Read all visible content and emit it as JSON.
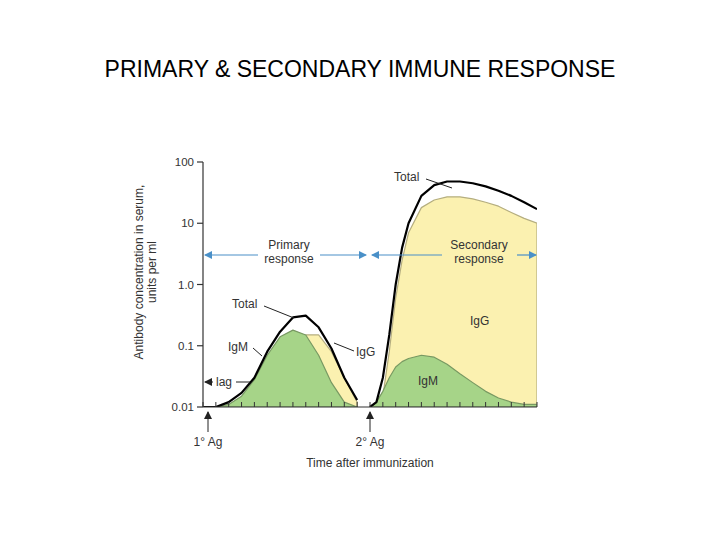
{
  "chart_data": {
    "type": "area",
    "title": "PRIMARY & SECONDARY IMMUNE RESPONSE",
    "x_label": "Time after immunization",
    "y_label": "Antibody concentration in serum, units per ml",
    "annotations": [
      "Primary response",
      "Secondary response",
      "lag",
      "1° Ag",
      "2° Ag"
    ],
    "x": [
      0,
      1,
      2,
      3,
      4,
      5,
      6,
      7,
      8,
      9,
      10,
      11,
      12,
      12.5,
      13,
      13.5,
      14,
      14.5,
      15,
      15.5,
      16,
      17,
      18,
      19,
      20,
      21,
      22,
      23,
      24,
      25,
      26
    ],
    "xlim": [
      0,
      26
    ],
    "xticks": [
      0,
      1,
      2,
      3,
      4,
      5,
      6,
      7,
      8,
      9,
      10,
      11,
      12,
      13,
      14,
      15,
      16,
      17,
      18,
      19,
      20,
      21,
      22,
      23,
      24,
      25,
      26
    ],
    "ylim": [
      0.01,
      100
    ],
    "yticks": [
      0.01,
      0.1,
      {
        "value": 1,
        "label": "1.0"
      },
      10,
      100
    ],
    "log": "y",
    "grid": false,
    "tick_labels": "y",
    "series": [
      {
        "name": "IgG",
        "color": "#fbf1b0",
        "type": "area",
        "values": [
          0.01,
          0.01,
          0.01,
          0.01,
          0.01,
          0.015,
          0.04,
          0.1,
          0.15,
          0.15,
          0.08,
          0.03,
          0.012,
          null,
          0.01,
          0.01,
          0.015,
          0.08,
          0.6,
          2.5,
          7,
          18,
          24,
          27,
          27,
          25,
          22,
          19,
          15,
          12,
          10
        ]
      },
      {
        "name": "IgM",
        "color": "#a6d488",
        "type": "area",
        "values": [
          0.01,
          0.01,
          0.011,
          0.015,
          0.028,
          0.07,
          0.14,
          0.18,
          0.15,
          0.07,
          0.025,
          0.012,
          0.01,
          null,
          0.01,
          0.012,
          0.018,
          0.03,
          0.045,
          0.055,
          0.062,
          0.07,
          0.065,
          0.05,
          0.035,
          0.025,
          0.018,
          0.014,
          0.012,
          0.011,
          0.011
        ]
      },
      {
        "name": "Total",
        "color": "#000000",
        "type": "line",
        "values": [
          0.01,
          0.01,
          0.012,
          0.017,
          0.03,
          0.08,
          0.17,
          0.29,
          0.31,
          0.2,
          0.09,
          0.03,
          0.013,
          null,
          0.01,
          0.012,
          0.03,
          0.15,
          1,
          4,
          10,
          28,
          42,
          48,
          48,
          45,
          40,
          34,
          28,
          22,
          17
        ]
      }
    ]
  }
}
